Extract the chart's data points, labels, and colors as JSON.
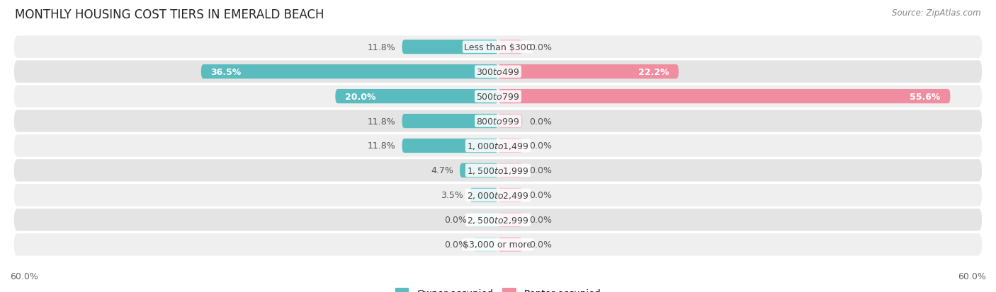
{
  "title": "MONTHLY HOUSING COST TIERS IN EMERALD BEACH",
  "source": "Source: ZipAtlas.com",
  "categories": [
    "Less than $300",
    "$300 to $499",
    "$500 to $799",
    "$800 to $999",
    "$1,000 to $1,499",
    "$1,500 to $1,999",
    "$2,000 to $2,499",
    "$2,500 to $2,999",
    "$3,000 or more"
  ],
  "owner_values": [
    11.8,
    36.5,
    20.0,
    11.8,
    11.8,
    4.7,
    3.5,
    0.0,
    0.0
  ],
  "renter_values": [
    0.0,
    22.2,
    55.6,
    0.0,
    0.0,
    0.0,
    0.0,
    0.0,
    0.0
  ],
  "owner_color": "#5bbcbf",
  "renter_color": "#f08da0",
  "renter_stub_color": "#f5b8c8",
  "row_bg_colors": [
    "#efefef",
    "#e4e4e4"
  ],
  "axis_max": 60.0,
  "label_fontsize": 9.0,
  "title_fontsize": 12,
  "source_fontsize": 8.5,
  "legend_fontsize": 9.5,
  "stub_min": 3.0,
  "cat_label_fontsize": 9.0
}
